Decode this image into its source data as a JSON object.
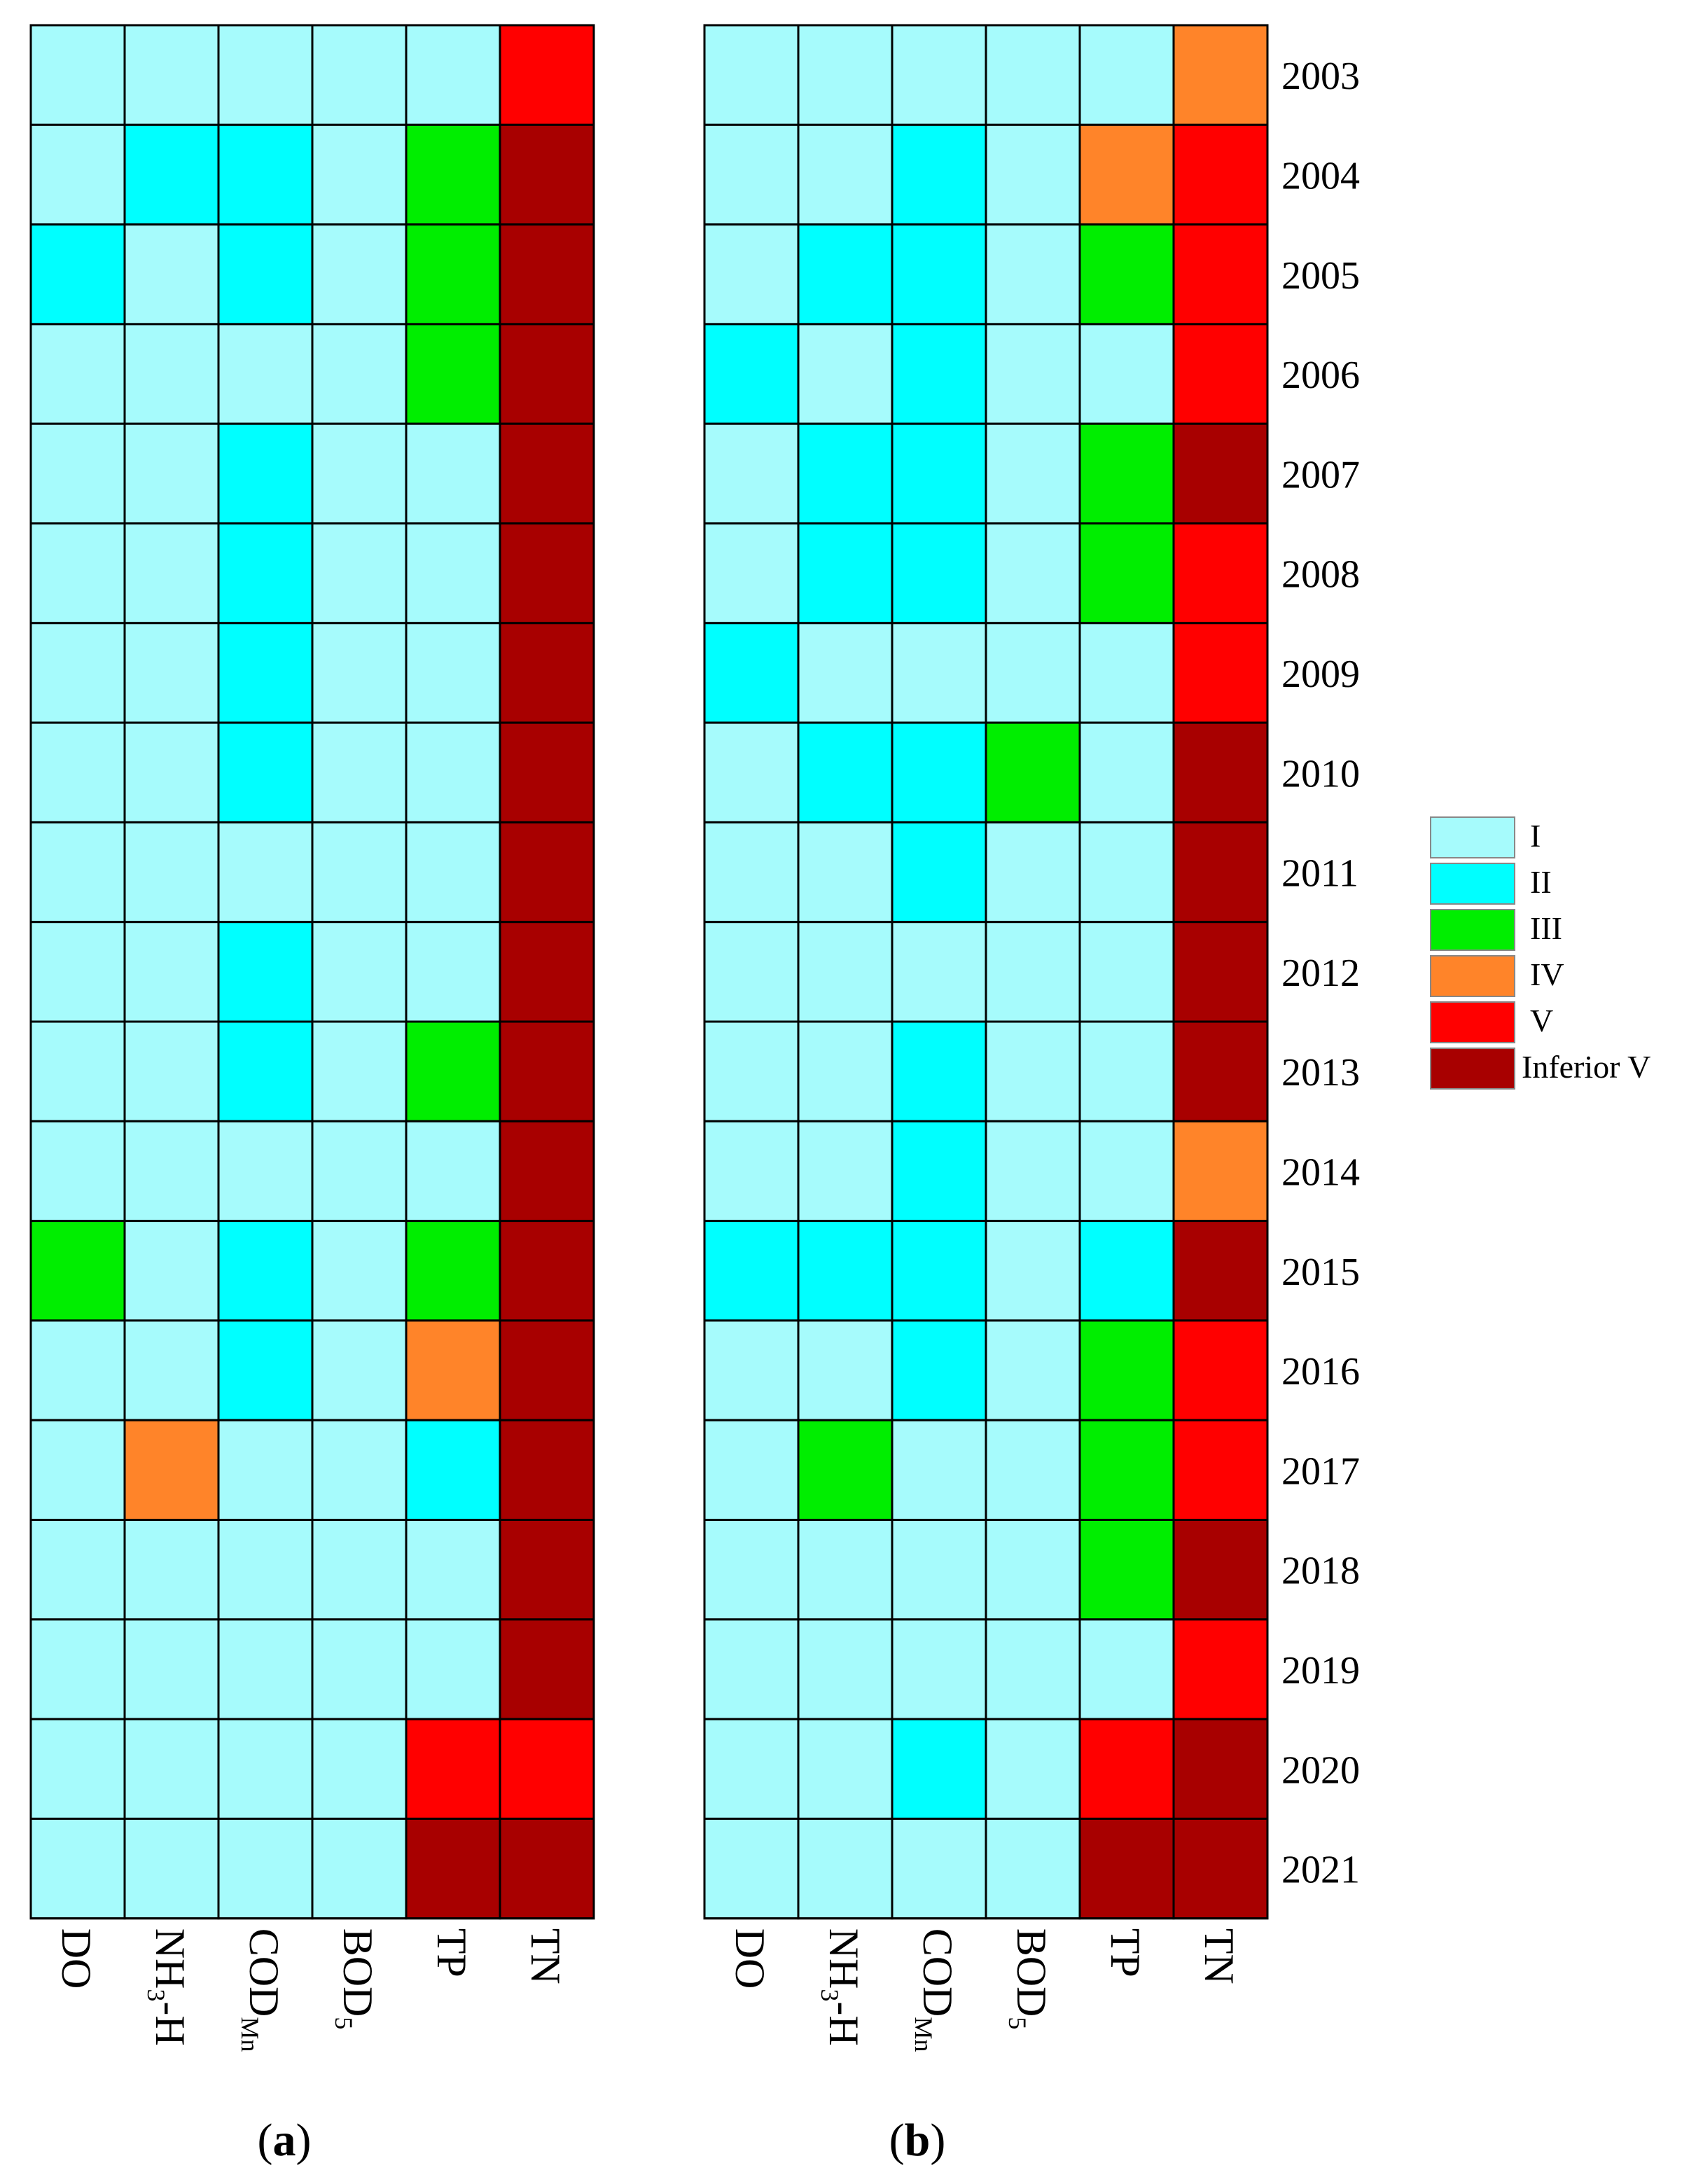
{
  "chart_data": [
    {
      "type": "heatmap",
      "panel_label": "a",
      "title": "",
      "xlabel": "",
      "ylabel": "",
      "columns": [
        "DO",
        "NH3-H",
        "CODMn",
        "BOD5",
        "TP",
        "TN"
      ],
      "rows": [
        "2003",
        "2004",
        "2005",
        "2006",
        "2007",
        "2008",
        "2009",
        "2010",
        "2011",
        "2012",
        "2013",
        "2014",
        "2015",
        "2016",
        "2017",
        "2018",
        "2019",
        "2020",
        "2021"
      ],
      "values": [
        [
          "I",
          "I",
          "I",
          "I",
          "I",
          "V"
        ],
        [
          "I",
          "II",
          "II",
          "I",
          "III",
          "Inferior V"
        ],
        [
          "II",
          "I",
          "II",
          "I",
          "III",
          "Inferior V"
        ],
        [
          "I",
          "I",
          "I",
          "I",
          "III",
          "Inferior V"
        ],
        [
          "I",
          "I",
          "II",
          "I",
          "I",
          "Inferior V"
        ],
        [
          "I",
          "I",
          "II",
          "I",
          "I",
          "Inferior V"
        ],
        [
          "I",
          "I",
          "II",
          "I",
          "I",
          "Inferior V"
        ],
        [
          "I",
          "I",
          "II",
          "I",
          "I",
          "Inferior V"
        ],
        [
          "I",
          "I",
          "I",
          "I",
          "I",
          "Inferior V"
        ],
        [
          "I",
          "I",
          "II",
          "I",
          "I",
          "Inferior V"
        ],
        [
          "I",
          "I",
          "II",
          "I",
          "III",
          "Inferior V"
        ],
        [
          "I",
          "I",
          "I",
          "I",
          "I",
          "Inferior V"
        ],
        [
          "III",
          "I",
          "II",
          "I",
          "III",
          "Inferior V"
        ],
        [
          "I",
          "I",
          "II",
          "I",
          "IV",
          "Inferior V"
        ],
        [
          "I",
          "IV",
          "I",
          "I",
          "II",
          "Inferior V"
        ],
        [
          "I",
          "I",
          "I",
          "I",
          "I",
          "Inferior V"
        ],
        [
          "I",
          "I",
          "I",
          "I",
          "I",
          "Inferior V"
        ],
        [
          "I",
          "I",
          "I",
          "I",
          "V",
          "V"
        ],
        [
          "I",
          "I",
          "I",
          "I",
          "Inferior V",
          "Inferior V"
        ]
      ]
    },
    {
      "type": "heatmap",
      "panel_label": "b",
      "title": "",
      "xlabel": "",
      "ylabel": "",
      "columns": [
        "DO",
        "NH3-H",
        "CODMn",
        "BOD5",
        "TP",
        "TN"
      ],
      "rows": [
        "2003",
        "2004",
        "2005",
        "2006",
        "2007",
        "2008",
        "2009",
        "2010",
        "2011",
        "2012",
        "2013",
        "2014",
        "2015",
        "2016",
        "2017",
        "2018",
        "2019",
        "2020",
        "2021"
      ],
      "values": [
        [
          "I",
          "I",
          "I",
          "I",
          "I",
          "IV"
        ],
        [
          "I",
          "I",
          "II",
          "I",
          "IV",
          "V"
        ],
        [
          "I",
          "II",
          "II",
          "I",
          "III",
          "V"
        ],
        [
          "II",
          "I",
          "II",
          "I",
          "I",
          "V"
        ],
        [
          "I",
          "II",
          "II",
          "I",
          "III",
          "Inferior V"
        ],
        [
          "I",
          "II",
          "II",
          "I",
          "III",
          "V"
        ],
        [
          "II",
          "I",
          "I",
          "I",
          "I",
          "V"
        ],
        [
          "I",
          "II",
          "II",
          "III",
          "I",
          "Inferior V"
        ],
        [
          "I",
          "I",
          "II",
          "I",
          "I",
          "Inferior V"
        ],
        [
          "I",
          "I",
          "I",
          "I",
          "I",
          "Inferior V"
        ],
        [
          "I",
          "I",
          "II",
          "I",
          "I",
          "Inferior V"
        ],
        [
          "I",
          "I",
          "II",
          "I",
          "I",
          "IV"
        ],
        [
          "II",
          "II",
          "II",
          "I",
          "II",
          "Inferior V"
        ],
        [
          "I",
          "I",
          "II",
          "I",
          "III",
          "V"
        ],
        [
          "I",
          "III",
          "I",
          "I",
          "III",
          "V"
        ],
        [
          "I",
          "I",
          "I",
          "I",
          "III",
          "Inferior V"
        ],
        [
          "I",
          "I",
          "I",
          "I",
          "I",
          "V"
        ],
        [
          "I",
          "I",
          "II",
          "I",
          "V",
          "Inferior V"
        ],
        [
          "I",
          "I",
          "I",
          "I",
          "Inferior V",
          "Inferior V"
        ]
      ]
    }
  ],
  "columns_display": [
    {
      "main": "DO",
      "sub": ""
    },
    {
      "main": "NH",
      "sub": "3",
      "tail": "-H"
    },
    {
      "main": "COD",
      "sub": "Mn"
    },
    {
      "main": "BOD",
      "sub": "5"
    },
    {
      "main": "TP",
      "sub": ""
    },
    {
      "main": "TN",
      "sub": ""
    }
  ],
  "panel_labels": [
    "a",
    "b"
  ],
  "legend": {
    "items": [
      {
        "label": "I",
        "color": "#a6fbfc"
      },
      {
        "label": "II",
        "color": "#00ffff"
      },
      {
        "label": "III",
        "color": "#00ee00"
      },
      {
        "label": "IV",
        "color": "#ff8429"
      },
      {
        "label": "V",
        "color": "#ff0000"
      },
      {
        "label": "Inferior V",
        "color": "#a80000"
      }
    ]
  }
}
